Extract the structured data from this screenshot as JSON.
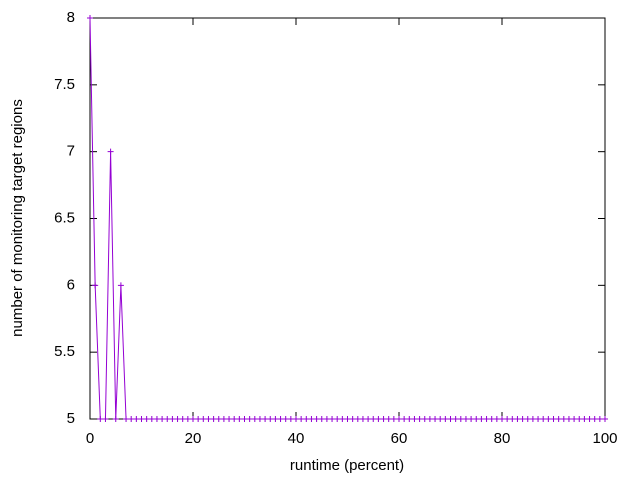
{
  "chart_data": {
    "type": "line",
    "xlabel": "runtime (percent)",
    "ylabel": "number of monitoring target regions",
    "color": "#9400d3",
    "x": [
      0,
      1,
      2,
      3,
      4,
      5,
      6,
      7,
      8,
      9,
      10,
      11,
      12,
      13,
      14,
      15,
      16,
      17,
      18,
      19,
      20,
      21,
      22,
      23,
      24,
      25,
      26,
      27,
      28,
      29,
      30,
      31,
      32,
      33,
      34,
      35,
      36,
      37,
      38,
      39,
      40,
      41,
      42,
      43,
      44,
      45,
      46,
      47,
      48,
      49,
      50,
      51,
      52,
      53,
      54,
      55,
      56,
      57,
      58,
      59,
      60,
      61,
      62,
      63,
      64,
      65,
      66,
      67,
      68,
      69,
      70,
      71,
      72,
      73,
      74,
      75,
      76,
      77,
      78,
      79,
      80,
      81,
      82,
      83,
      84,
      85,
      86,
      87,
      88,
      89,
      90,
      91,
      92,
      93,
      94,
      95,
      96,
      97,
      98,
      99,
      100
    ],
    "values": [
      8,
      6,
      5,
      5,
      7,
      5,
      6,
      5,
      5,
      5,
      5,
      5,
      5,
      5,
      5,
      5,
      5,
      5,
      5,
      5,
      5,
      5,
      5,
      5,
      5,
      5,
      5,
      5,
      5,
      5,
      5,
      5,
      5,
      5,
      5,
      5,
      5,
      5,
      5,
      5,
      5,
      5,
      5,
      5,
      5,
      5,
      5,
      5,
      5,
      5,
      5,
      5,
      5,
      5,
      5,
      5,
      5,
      5,
      5,
      5,
      5,
      5,
      5,
      5,
      5,
      5,
      5,
      5,
      5,
      5,
      5,
      5,
      5,
      5,
      5,
      5,
      5,
      5,
      5,
      5,
      5,
      5,
      5,
      5,
      5,
      5,
      5,
      5,
      5,
      5,
      5,
      5,
      5,
      5,
      5,
      5,
      5,
      5,
      5,
      5,
      5
    ],
    "xlim": [
      0,
      100
    ],
    "xticks": [
      0,
      20,
      40,
      60,
      80,
      100
    ],
    "ylim": [
      5,
      8
    ],
    "yticks": [
      5,
      5.5,
      6,
      6.5,
      7,
      7.5,
      8
    ]
  }
}
